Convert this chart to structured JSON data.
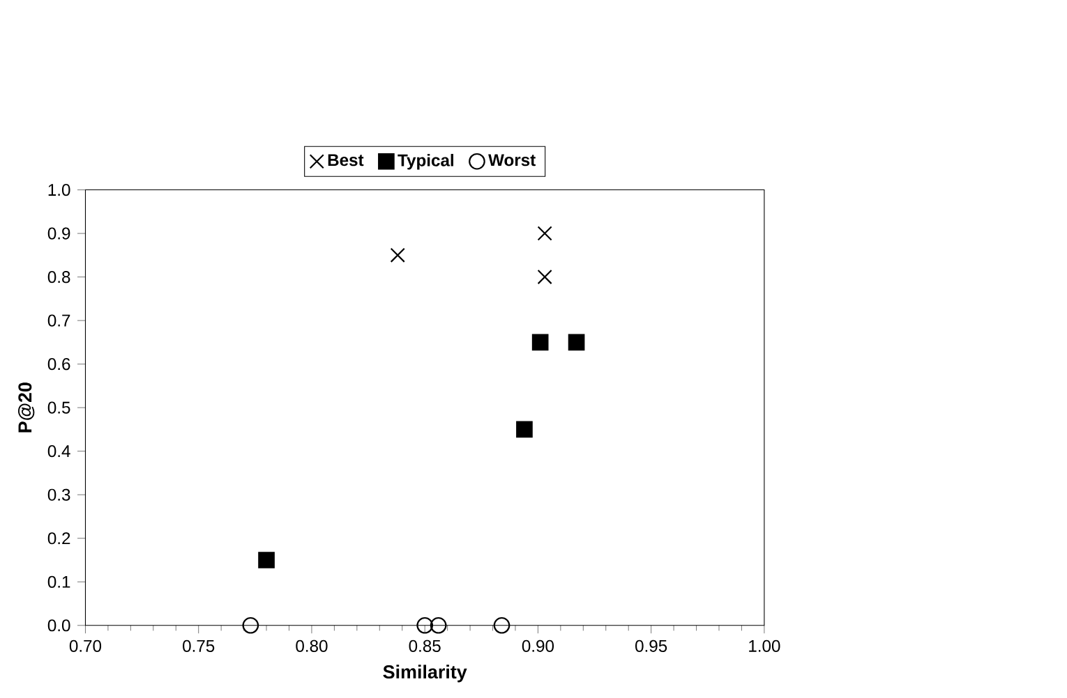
{
  "chart_data": {
    "type": "scatter",
    "xlabel": "Similarity",
    "ylabel": "P@20",
    "xlim": [
      0.7,
      1.0
    ],
    "xticks": [
      {
        "value": 0.7,
        "label": "0.70"
      },
      {
        "value": 0.75,
        "label": "0.75"
      },
      {
        "value": 0.8,
        "label": "0.80"
      },
      {
        "value": 0.85,
        "label": "0.85"
      },
      {
        "value": 0.9,
        "label": "0.90"
      },
      {
        "value": 0.95,
        "label": "0.95"
      },
      {
        "value": 1.0,
        "label": "1.00"
      }
    ],
    "ylim": [
      0,
      1.0
    ],
    "yticks": [
      {
        "value": 0,
        "label": "0.0"
      },
      {
        "value": 0.1,
        "label": "0.1"
      },
      {
        "value": 0.2,
        "label": "0.2"
      },
      {
        "value": 0.3,
        "label": "0.3"
      },
      {
        "value": 0.4,
        "label": "0.4"
      },
      {
        "value": 0.5,
        "label": "0.5"
      },
      {
        "value": 0.6,
        "label": "0.6"
      },
      {
        "value": 0.7,
        "label": "0.7"
      },
      {
        "value": 0.8,
        "label": "0.8"
      },
      {
        "value": 0.9,
        "label": "0.9"
      },
      {
        "value": 1.0,
        "label": "1.0"
      }
    ],
    "grid": false,
    "legend": "top",
    "series": [
      {
        "name": "Best",
        "color": "#000000",
        "marker": "cross",
        "x": [
          0.838,
          0.903,
          0.903
        ],
        "values": [
          0.85,
          0.9,
          0.8
        ]
      },
      {
        "name": "Typical",
        "color": "#000000",
        "marker": "square",
        "x": [
          0.78,
          0.894,
          0.901,
          0.917
        ],
        "values": [
          0.15,
          0.45,
          0.65,
          0.65
        ]
      },
      {
        "name": "Worst",
        "color": "#000000",
        "marker": "circle",
        "x": [
          0.773,
          0.85,
          0.856,
          0.884
        ],
        "values": [
          0,
          0,
          0,
          0
        ]
      }
    ]
  }
}
